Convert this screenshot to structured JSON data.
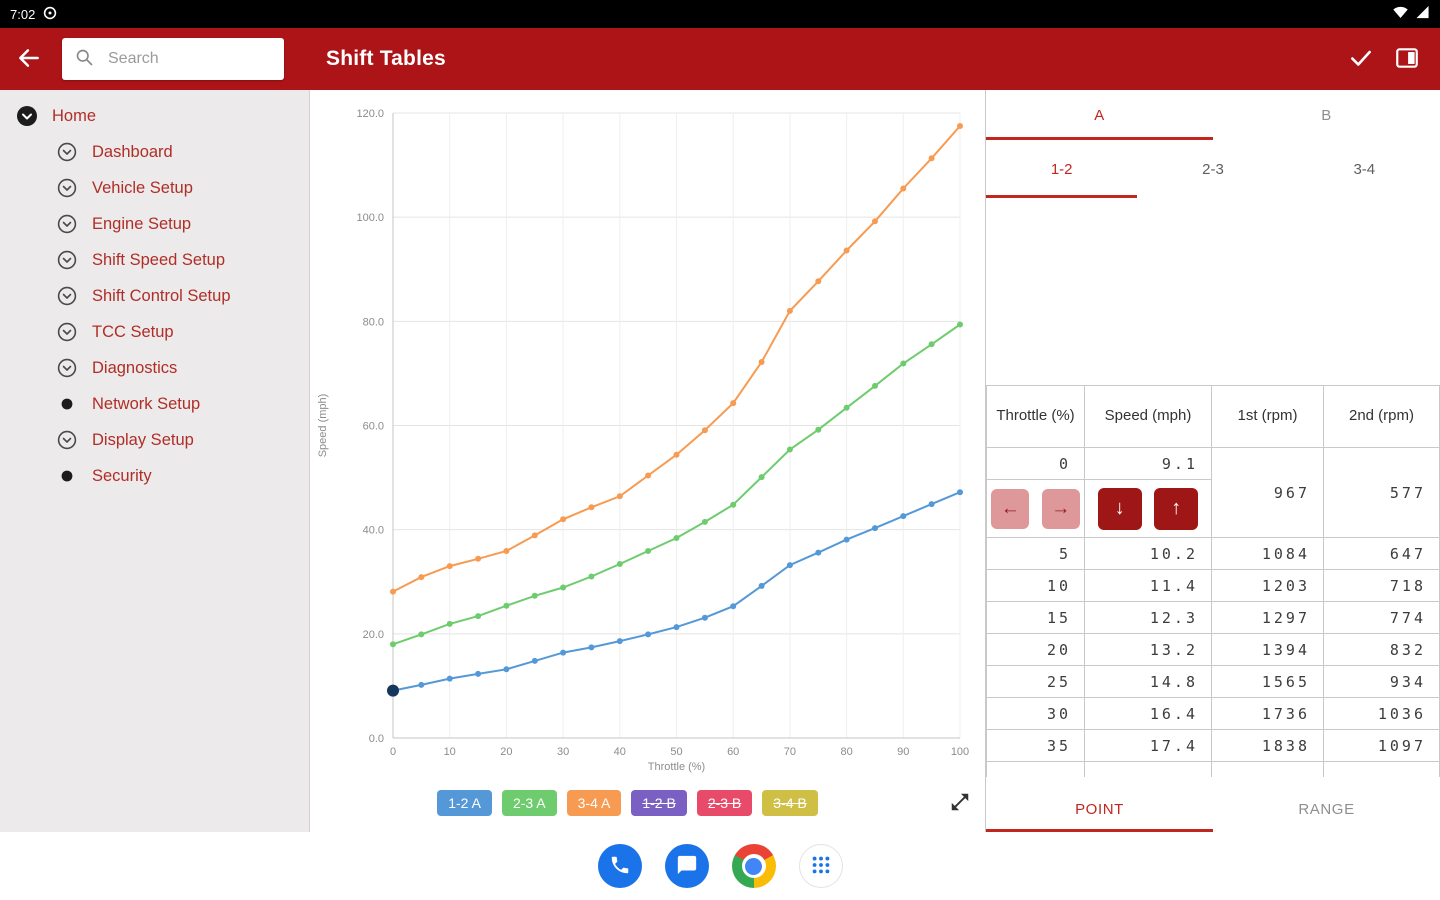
{
  "colors": {
    "app_bar_bg": "#AD1418",
    "nav_text": "#B02E28",
    "tab_red": "#C1271F",
    "dark_red_button": "#9E1615",
    "pink_button": "#DE989A",
    "pink_button_arrow": "#8E1B1B"
  },
  "status_bar": {
    "time": "7:02"
  },
  "app_bar": {
    "title": "Shift Tables",
    "search": {
      "placeholder": "Search"
    }
  },
  "sidebar": {
    "items": [
      {
        "label": "Home",
        "icon": "chevron-circle-filled",
        "level": 0
      },
      {
        "label": "Dashboard",
        "icon": "chevron-circle",
        "level": 1
      },
      {
        "label": "Vehicle Setup",
        "icon": "chevron-circle",
        "level": 1
      },
      {
        "label": "Engine Setup",
        "icon": "chevron-circle",
        "level": 1
      },
      {
        "label": "Shift Speed Setup",
        "icon": "chevron-circle",
        "level": 1
      },
      {
        "label": "Shift Control Setup",
        "icon": "chevron-circle",
        "level": 1
      },
      {
        "label": "TCC Setup",
        "icon": "chevron-circle",
        "level": 1
      },
      {
        "label": "Diagnostics",
        "icon": "chevron-circle",
        "level": 1
      },
      {
        "label": "Network Setup",
        "icon": "dot",
        "level": 1
      },
      {
        "label": "Display Setup",
        "icon": "chevron-circle",
        "level": 1
      },
      {
        "label": "Security",
        "icon": "dot",
        "level": 1
      }
    ]
  },
  "chart_data": {
    "type": "line",
    "title": "",
    "xlabel": "Throttle (%)",
    "ylabel": "Speed (mph)",
    "xlim": [
      0,
      100
    ],
    "ylim": [
      0,
      120
    ],
    "x_ticks": [
      0,
      10,
      20,
      30,
      40,
      50,
      60,
      70,
      80,
      90,
      100
    ],
    "y_ticks": [
      "0.0",
      "20.0",
      "40.0",
      "60.0",
      "80.0",
      "100.0",
      "120.0"
    ],
    "grid": true,
    "legend_position": "bottom",
    "x": [
      0,
      5,
      10,
      15,
      20,
      25,
      30,
      35,
      40,
      45,
      50,
      55,
      60,
      65,
      70,
      75,
      80,
      85,
      90,
      95,
      100
    ],
    "series": [
      {
        "name": "1-2 A",
        "color": "#5598d8",
        "visible": true,
        "values": [
          9.1,
          10.2,
          11.4,
          12.3,
          13.2,
          14.8,
          16.4,
          17.4,
          18.6,
          19.9,
          21.3,
          23.1,
          25.3,
          29.2,
          33.2,
          35.6,
          38.1,
          40.3,
          42.6,
          44.9,
          47.2
        ]
      },
      {
        "name": "2-3 A",
        "color": "#6ecc6e",
        "visible": true,
        "values": [
          18.0,
          19.9,
          21.9,
          23.4,
          25.4,
          27.3,
          28.9,
          31.0,
          33.4,
          35.9,
          38.4,
          41.5,
          44.8,
          50.1,
          55.4,
          59.2,
          63.4,
          67.6,
          71.9,
          75.6,
          79.4
        ]
      },
      {
        "name": "3-4 A",
        "color": "#f79b52",
        "visible": true,
        "values": [
          28.1,
          30.9,
          33.0,
          34.4,
          35.9,
          38.9,
          42.0,
          44.3,
          46.4,
          50.4,
          54.4,
          59.1,
          64.3,
          72.2,
          82.0,
          87.7,
          93.6,
          99.2,
          105.5,
          111.3,
          117.5
        ]
      },
      {
        "name": "1-2 B",
        "color": "#7a60c2",
        "visible": false,
        "values": []
      },
      {
        "name": "2-3 B",
        "color": "#e84a6a",
        "visible": false,
        "values": []
      },
      {
        "name": "3-4 B",
        "color": "#cfbf45",
        "visible": false,
        "values": []
      }
    ],
    "selected_point": {
      "series": "1-2 A",
      "x": 0,
      "y": 9.1,
      "color": "#16365c"
    }
  },
  "right_panel": {
    "tabs": [
      {
        "label": "A",
        "selected": true
      },
      {
        "label": "B",
        "selected": false
      }
    ],
    "sub_tabs": [
      {
        "label": "1-2",
        "selected": true
      },
      {
        "label": "2-3",
        "selected": false
      },
      {
        "label": "3-4",
        "selected": false
      }
    ],
    "table": {
      "headers": [
        "Throttle (%)",
        "Speed (mph)",
        "1st (rpm)",
        "2nd (rpm)"
      ],
      "selected_row": {
        "throttle": "0",
        "speed": "9.1",
        "rpm1": "967",
        "rpm2": "577"
      },
      "rows": [
        [
          "5",
          "10.2",
          "1084",
          "647"
        ],
        [
          "10",
          "11.4",
          "1203",
          "718"
        ],
        [
          "15",
          "12.3",
          "1297",
          "774"
        ],
        [
          "20",
          "13.2",
          "1394",
          "832"
        ],
        [
          "25",
          "14.8",
          "1565",
          "934"
        ],
        [
          "30",
          "16.4",
          "1736",
          "1036"
        ],
        [
          "35",
          "17.4",
          "1838",
          "1097"
        ]
      ]
    },
    "bottom_tabs": [
      {
        "label": "POINT",
        "selected": true
      },
      {
        "label": "RANGE",
        "selected": false
      }
    ]
  },
  "dock": {
    "apps": [
      "phone",
      "messages",
      "chrome",
      "app-drawer"
    ]
  }
}
